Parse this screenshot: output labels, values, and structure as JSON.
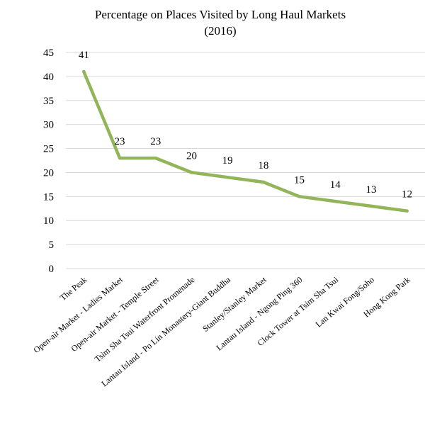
{
  "chart_data": {
    "type": "line",
    "title": "Percentage on Places Visited by Long Haul Markets",
    "subtitle": "(2016)",
    "categories": [
      "The Peak",
      "Open-air Market - Ladies Market",
      "Open-air Market - Temple Street",
      "Tsim Sha Tsui Waterfront Promenade",
      "Lantau Island - Po Lin Monastery-Giant Buddha",
      "Stanley/Stanley Market",
      "Lantau Island - Ngong Ping 360",
      "Clock Tower at Tsim Sha Tsui",
      "Lan Kwai Fong/Soho",
      "Hong Kong Park"
    ],
    "series": [
      {
        "values": [
          41,
          23,
          23,
          20,
          19,
          18,
          15,
          14,
          13,
          12
        ],
        "color": "#92b55a"
      }
    ],
    "yticks": [
      "0",
      "5",
      "10",
      "15",
      "20",
      "25",
      "30",
      "35",
      "40",
      "45"
    ],
    "ylim": [
      0,
      45
    ],
    "xlabel": "",
    "ylabel": "",
    "grid": true,
    "legend": "none",
    "data_labels": true
  }
}
